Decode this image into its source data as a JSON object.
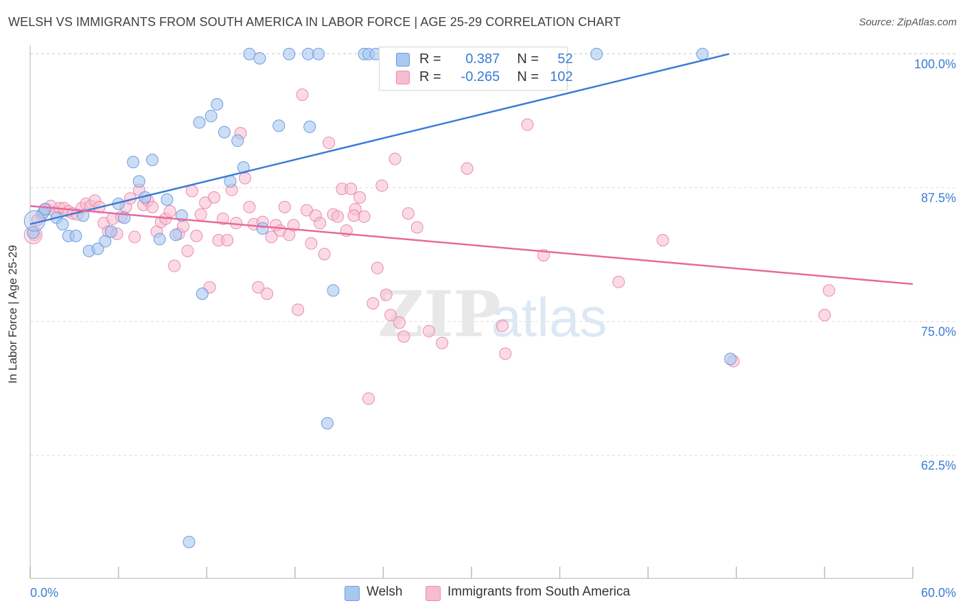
{
  "header": {
    "title": "WELSH VS IMMIGRANTS FROM SOUTH AMERICA IN LABOR FORCE | AGE 25-29 CORRELATION CHART",
    "source": "Source: ZipAtlas.com"
  },
  "watermark": {
    "part1": "ZIP",
    "part2": "atlas"
  },
  "legend": {
    "rows": [
      {
        "r_label": "R =",
        "r_value": "0.387",
        "n_label": "N =",
        "n_value": "52",
        "color": "#a8c8f0"
      },
      {
        "r_label": "R =",
        "r_value": "-0.265",
        "n_label": "N =",
        "n_value": "102",
        "color": "#f8bcd0"
      }
    ]
  },
  "bottom_legend": {
    "welsh": "Welsh",
    "immigrants": "Immigrants from South America"
  },
  "colors": {
    "welsh_fill": "#a8c8f0",
    "welsh_stroke": "#6a9be0",
    "welsh_line": "#3a7bd5",
    "imm_fill": "#f8bcd0",
    "imm_stroke": "#ea8aab",
    "imm_line": "#e8689a",
    "tick_label": "#3a7bd5",
    "grid": "#dcdcdc"
  },
  "chart_data": {
    "type": "scatter",
    "title": "WELSH VS IMMIGRANTS FROM SOUTH AMERICA IN LABOR FORCE | AGE 25-29 CORRELATION CHART",
    "xlabel": "",
    "ylabel": "In Labor Force | Age 25-29",
    "xlim": [
      0,
      60
    ],
    "ylim": [
      51,
      101.2
    ],
    "x_tick_labels": [
      "0.0%",
      "60.0%"
    ],
    "y_ticks": [
      62.5,
      75.0,
      87.5,
      100.0
    ],
    "y_tick_labels": [
      "62.5%",
      "75.0%",
      "87.5%",
      "100.0%"
    ],
    "grid": true,
    "legend_position": "top-center",
    "series": [
      {
        "name": "Welsh",
        "points": [
          [
            0.2,
            83.3
          ],
          [
            0.9,
            85.2
          ],
          [
            1.0,
            85.5
          ],
          [
            1.8,
            84.7
          ],
          [
            2.2,
            84.1
          ],
          [
            2.6,
            83.0
          ],
          [
            3.1,
            83.0
          ],
          [
            3.6,
            84.9
          ],
          [
            4.0,
            81.6
          ],
          [
            4.6,
            81.8
          ],
          [
            5.1,
            82.5
          ],
          [
            5.5,
            83.4
          ],
          [
            6.0,
            86.0
          ],
          [
            6.4,
            84.7
          ],
          [
            7.0,
            89.9
          ],
          [
            7.4,
            88.1
          ],
          [
            7.8,
            86.6
          ],
          [
            8.3,
            90.1
          ],
          [
            8.8,
            82.7
          ],
          [
            9.3,
            86.4
          ],
          [
            9.9,
            83.1
          ],
          [
            10.3,
            84.9
          ],
          [
            10.8,
            54.4
          ],
          [
            11.5,
            93.6
          ],
          [
            11.7,
            77.6
          ],
          [
            12.3,
            94.2
          ],
          [
            12.7,
            95.3
          ],
          [
            13.2,
            92.7
          ],
          [
            13.6,
            88.1
          ],
          [
            14.1,
            91.9
          ],
          [
            14.5,
            89.4
          ],
          [
            14.9,
            100.0
          ],
          [
            15.6,
            99.6
          ],
          [
            15.8,
            83.7
          ],
          [
            16.9,
            93.3
          ],
          [
            17.6,
            100.0
          ],
          [
            18.9,
            100.0
          ],
          [
            19.0,
            93.2
          ],
          [
            19.6,
            100.0
          ],
          [
            20.2,
            65.5
          ],
          [
            20.6,
            77.9
          ],
          [
            22.7,
            100.0
          ],
          [
            23.0,
            100.0
          ],
          [
            23.5,
            100.0
          ],
          [
            27.5,
            100.0
          ],
          [
            29.8,
            100.0
          ],
          [
            30.1,
            100.0
          ],
          [
            30.7,
            100.0
          ],
          [
            36.1,
            100.0
          ],
          [
            38.5,
            100.0
          ],
          [
            45.7,
            100.0
          ],
          [
            47.6,
            71.5
          ]
        ],
        "trend": {
          "x": [
            0,
            47.5
          ],
          "y": [
            84.1,
            100.0
          ]
        }
      },
      {
        "name": "Immigrants from South America",
        "points": [
          [
            0.3,
            83.1
          ],
          [
            0.5,
            84.5
          ],
          [
            0.8,
            85.0
          ],
          [
            1.1,
            85.5
          ],
          [
            1.4,
            85.8
          ],
          [
            1.7,
            85.2
          ],
          [
            2.0,
            85.6
          ],
          [
            2.3,
            85.6
          ],
          [
            2.6,
            85.3
          ],
          [
            2.9,
            85.1
          ],
          [
            3.2,
            85.0
          ],
          [
            3.5,
            85.6
          ],
          [
            3.8,
            86.0
          ],
          [
            4.1,
            85.8
          ],
          [
            4.4,
            86.3
          ],
          [
            4.7,
            85.7
          ],
          [
            5.0,
            84.2
          ],
          [
            5.3,
            83.4
          ],
          [
            5.6,
            84.6
          ],
          [
            5.9,
            83.2
          ],
          [
            6.2,
            84.8
          ],
          [
            6.5,
            85.7
          ],
          [
            6.8,
            86.5
          ],
          [
            7.1,
            82.9
          ],
          [
            7.4,
            87.3
          ],
          [
            7.7,
            85.9
          ],
          [
            8.0,
            86.3
          ],
          [
            8.3,
            85.7
          ],
          [
            8.6,
            83.4
          ],
          [
            8.9,
            84.3
          ],
          [
            9.2,
            84.6
          ],
          [
            9.5,
            85.3
          ],
          [
            9.8,
            80.2
          ],
          [
            10.1,
            83.2
          ],
          [
            10.4,
            83.9
          ],
          [
            10.7,
            81.6
          ],
          [
            11.0,
            87.2
          ],
          [
            11.3,
            83.0
          ],
          [
            11.6,
            85.0
          ],
          [
            11.9,
            86.1
          ],
          [
            12.2,
            78.2
          ],
          [
            12.5,
            86.6
          ],
          [
            12.8,
            82.6
          ],
          [
            13.1,
            84.6
          ],
          [
            13.4,
            82.6
          ],
          [
            13.7,
            87.3
          ],
          [
            14.0,
            84.2
          ],
          [
            14.3,
            92.6
          ],
          [
            14.6,
            88.4
          ],
          [
            14.9,
            85.7
          ],
          [
            15.2,
            84.1
          ],
          [
            15.5,
            78.2
          ],
          [
            15.8,
            84.3
          ],
          [
            16.1,
            77.6
          ],
          [
            16.4,
            82.9
          ],
          [
            16.7,
            84.0
          ],
          [
            17.0,
            83.5
          ],
          [
            17.3,
            85.7
          ],
          [
            17.6,
            83.1
          ],
          [
            17.9,
            84.0
          ],
          [
            18.2,
            76.1
          ],
          [
            18.5,
            96.2
          ],
          [
            18.8,
            85.4
          ],
          [
            19.1,
            82.3
          ],
          [
            19.4,
            84.9
          ],
          [
            19.7,
            84.2
          ],
          [
            20.0,
            81.3
          ],
          [
            20.3,
            91.7
          ],
          [
            20.6,
            85.0
          ],
          [
            20.9,
            84.8
          ],
          [
            21.2,
            87.4
          ],
          [
            21.5,
            83.5
          ],
          [
            21.8,
            87.4
          ],
          [
            22.1,
            85.5
          ],
          [
            22.4,
            86.6
          ],
          [
            22.7,
            84.8
          ],
          [
            23.0,
            67.8
          ],
          [
            23.3,
            76.7
          ],
          [
            23.6,
            80.0
          ],
          [
            23.9,
            87.7
          ],
          [
            24.2,
            77.5
          ],
          [
            24.5,
            75.6
          ],
          [
            24.8,
            90.2
          ],
          [
            25.1,
            74.9
          ],
          [
            25.4,
            73.6
          ],
          [
            25.7,
            85.1
          ],
          [
            26.0,
            100.0
          ],
          [
            26.3,
            83.8
          ],
          [
            26.6,
            100.0
          ],
          [
            27.1,
            74.1
          ],
          [
            28.0,
            73.0
          ],
          [
            29.7,
            89.3
          ],
          [
            32.1,
            74.6
          ],
          [
            32.3,
            72.0
          ],
          [
            33.8,
            93.4
          ],
          [
            34.9,
            81.2
          ],
          [
            40.0,
            78.7
          ],
          [
            43.0,
            82.6
          ],
          [
            47.8,
            71.3
          ],
          [
            54.0,
            75.6
          ],
          [
            54.3,
            77.9
          ],
          [
            22.0,
            84.9
          ]
        ],
        "trend": {
          "x": [
            0,
            60
          ],
          "y": [
            85.8,
            78.5
          ]
        }
      }
    ]
  }
}
